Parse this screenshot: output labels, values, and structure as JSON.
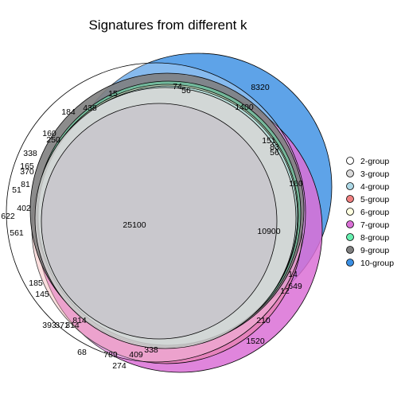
{
  "title": "Signatures from different k",
  "legend": [
    {
      "label": "2-group",
      "color": "#ffffff"
    },
    {
      "label": "3-group",
      "color": "#d9d9d9"
    },
    {
      "label": "4-group",
      "color": "#add8e6"
    },
    {
      "label": "5-group",
      "color": "#f08080"
    },
    {
      "label": "6-group",
      "color": "#ffffe0"
    },
    {
      "label": "7-group",
      "color": "#da70d6"
    },
    {
      "label": "8-group",
      "color": "#66f0b0"
    },
    {
      "label": "9-group",
      "color": "#808080"
    },
    {
      "label": "10-group",
      "color": "#3b8fe3"
    }
  ],
  "region_labels": [
    "8320",
    "74",
    "56",
    "15",
    "438",
    "184",
    "1400",
    "160",
    "250",
    "151",
    "83",
    "56",
    "338",
    "165",
    "370",
    "51",
    "81",
    "402",
    "622",
    "561",
    "25100",
    "10900",
    "160",
    "14",
    "649",
    "12",
    "185",
    "145",
    "393",
    "371",
    "314",
    "814",
    "210",
    "1520",
    "68",
    "789",
    "338",
    "409",
    "274"
  ]
}
